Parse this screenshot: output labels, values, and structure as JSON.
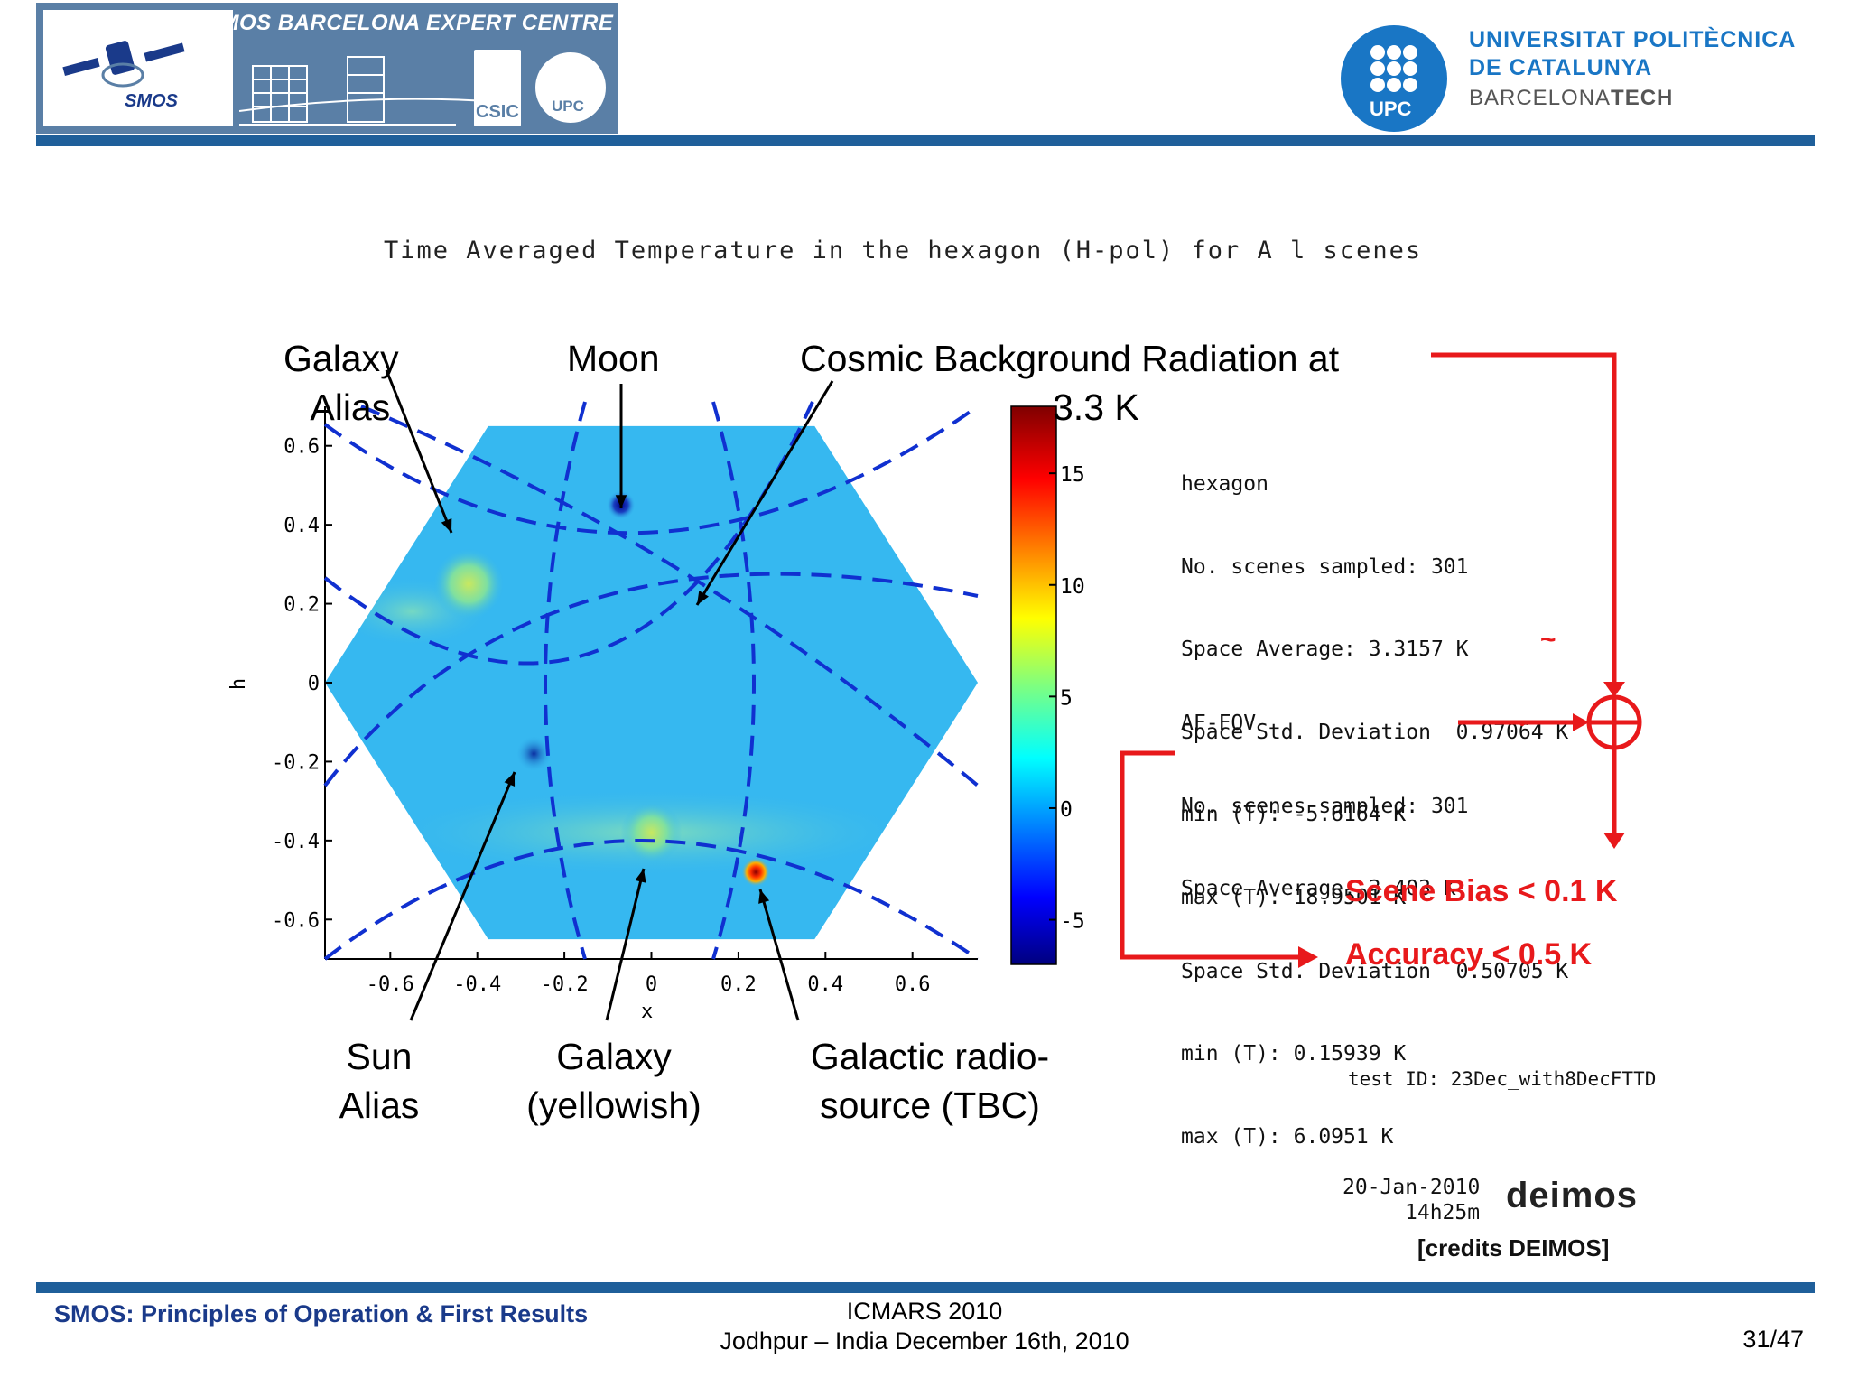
{
  "header": {
    "centre_title": "SMOS BARCELONA EXPERT CENTRE",
    "smos_logo_text": "SMOS",
    "csic_text": "CSIC",
    "upc_small_text": "UPC",
    "upc_logo_text": "UPC",
    "university_line1": "UNIVERSITAT POLITÈCNICA",
    "university_line2": "DE CATALUNYA",
    "university_line3_a": "BARCELONA",
    "university_line3_b": "TECH",
    "colors": {
      "bar": "#1f5f9a",
      "upc_blue": "#1976c5",
      "banner": "#5a7fa6"
    }
  },
  "chart_data": {
    "type": "heatmap",
    "title": "Time Averaged Temperature in the hexagon (H-pol) for A l scenes",
    "xlabel": "x",
    "ylabel": "h",
    "xlim": [
      -0.75,
      0.75
    ],
    "ylim": [
      -0.7,
      0.7
    ],
    "x_ticks": [
      "-0.6",
      "-0.4",
      "-0.2",
      "0",
      "0.2",
      "0.4",
      "0.6"
    ],
    "y_ticks": [
      "0.6",
      "0.4",
      "0.2",
      "0",
      "-0.2",
      "-0.4",
      "-0.6"
    ],
    "colorbar": {
      "min": -7,
      "max": 18,
      "ticks": [
        "15",
        "10",
        "5",
        "0",
        "-5"
      ]
    },
    "background_value": 3.3,
    "features": [
      {
        "label": "Moon",
        "x": -0.07,
        "y": 0.45,
        "value": -5
      },
      {
        "label": "Sun Alias",
        "x": -0.27,
        "y": -0.18,
        "value": -2
      },
      {
        "label": "Galactic radio-source",
        "x": 0.24,
        "y": -0.48,
        "value": 18
      },
      {
        "label": "Galaxy Alias",
        "x": -0.42,
        "y": 0.25,
        "value": 8
      },
      {
        "label": "Galaxy",
        "x": 0.0,
        "y": -0.38,
        "value": 6
      }
    ]
  },
  "annotations": {
    "galaxy_alias": [
      "Galaxy",
      "Alias"
    ],
    "moon": "Moon",
    "cosmic": [
      "Cosmic Background Radiation at",
      "3.3 K"
    ],
    "sun_alias": [
      "Sun",
      "Alias"
    ],
    "galaxy": [
      "Galaxy",
      "(yellowish)"
    ],
    "radio_source": [
      "Galactic radio-",
      "source (TBC)"
    ]
  },
  "stats": {
    "hexagon": [
      "hexagon",
      "No. scenes sampled: 301",
      "Space Average: 3.3157 K",
      "Space Std. Deviation  0.97064 K",
      "min (T): -5.6164 K",
      "max (T): 18.9501 K"
    ],
    "af_fov": [
      "AF-FOV",
      "No. scenes sampled: 301",
      "Space Average: 3.403 K",
      "Space Std. Deviation  0.50705 K",
      "min (T): 0.15939 K",
      "max (T): 6.0951 K"
    ],
    "tilde": "~",
    "scene_bias": "Scene Bias < 0.1 K",
    "accuracy": "Accuracy < 0.5 K",
    "test_id": "test ID: 23Dec_with8DecFTTD",
    "date": "20-Jan-2010",
    "time": "14h25m",
    "deimos_logo": "deimos",
    "credits": "[credits DEIMOS]"
  },
  "footer": {
    "left": "SMOS: Principles of Operation & First Results",
    "mid1": "ICMARS 2010",
    "mid2": "Jodhpur – India December 16th, 2010",
    "page": "31/47"
  }
}
